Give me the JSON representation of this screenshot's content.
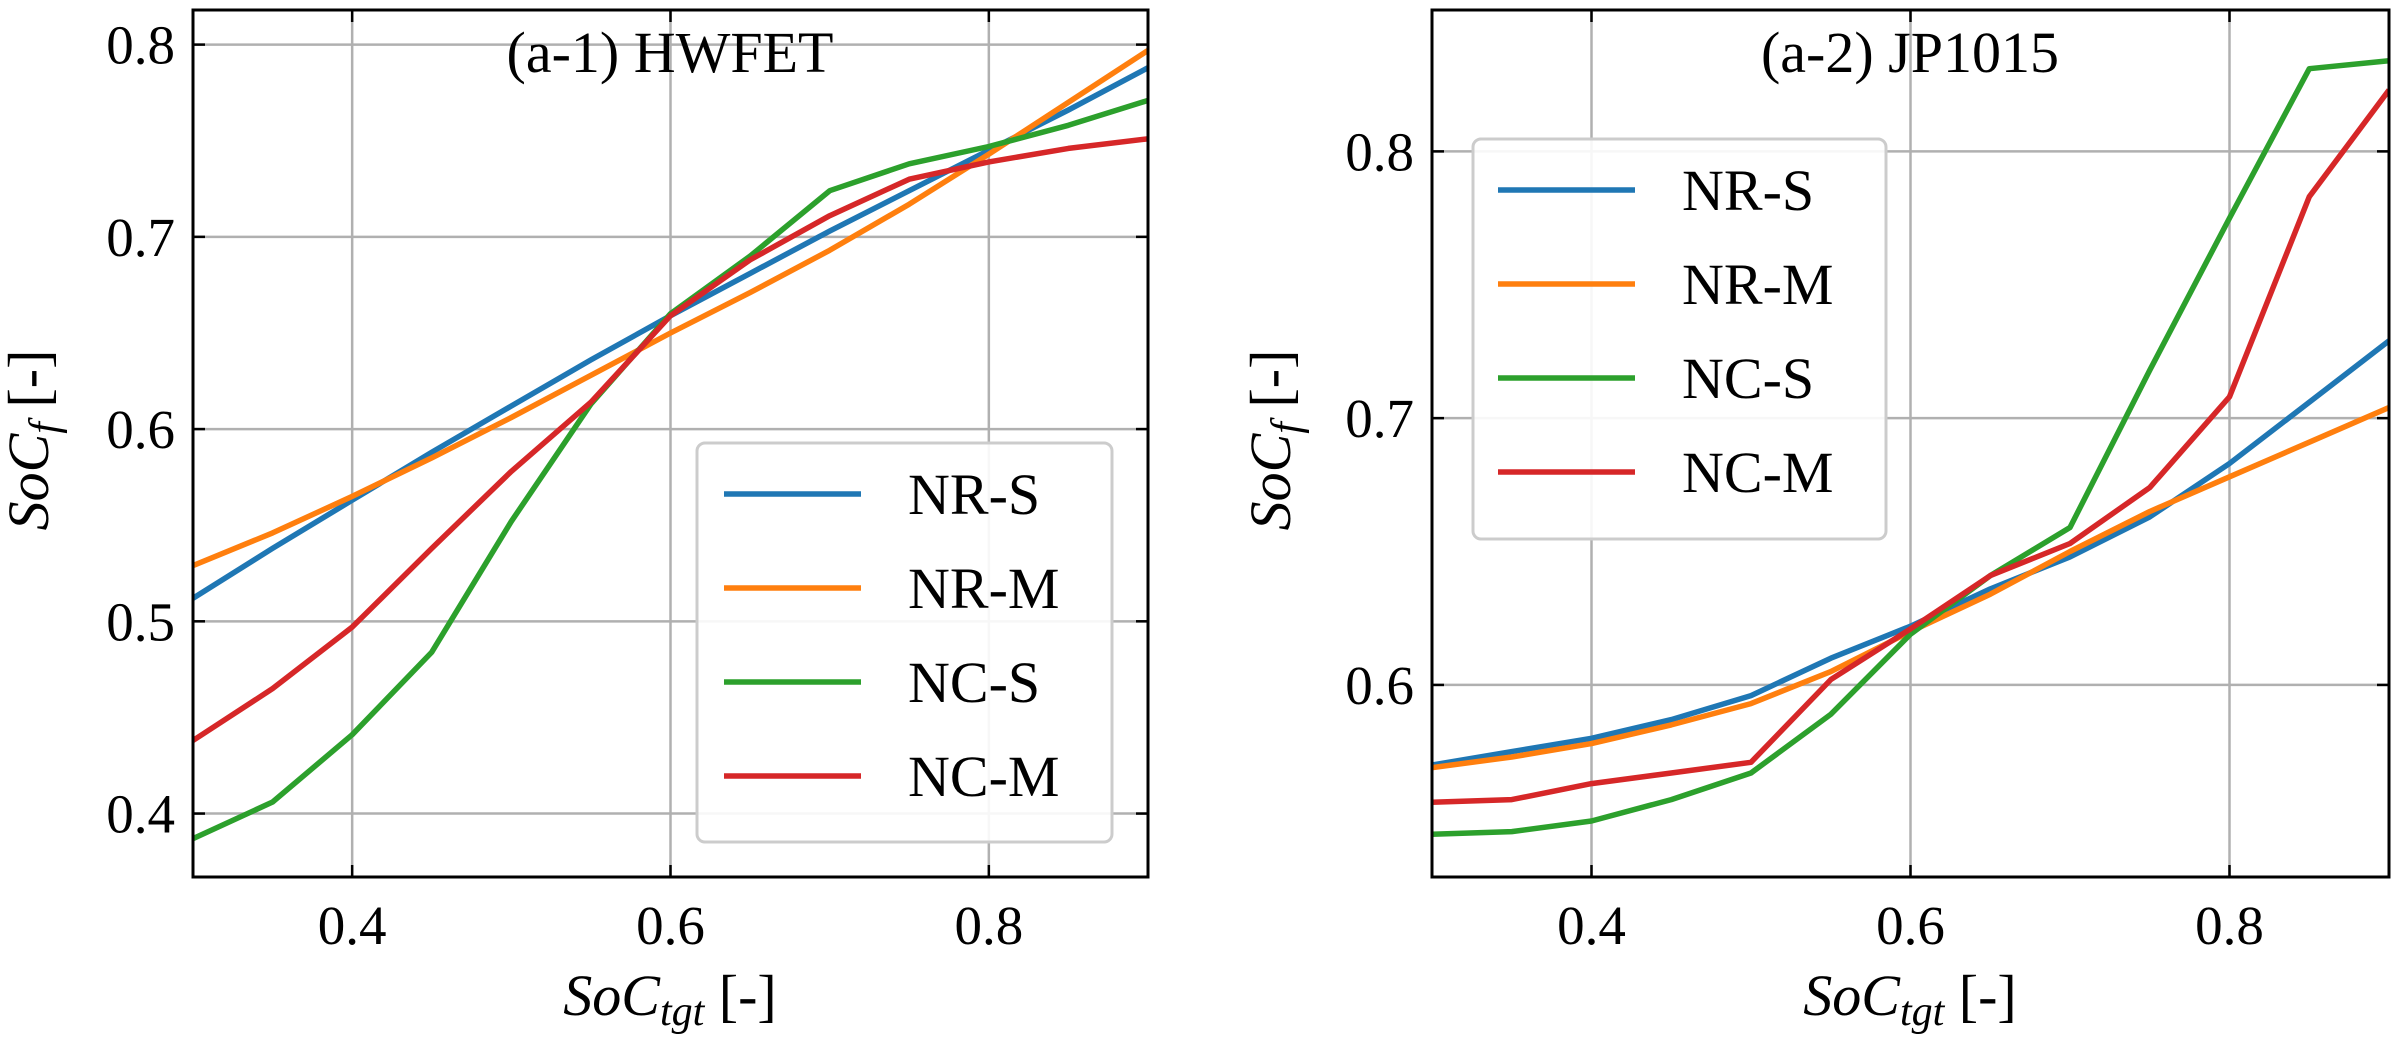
{
  "chart_data": [
    {
      "type": "line",
      "title": "(a-1) HWFET",
      "xlabel": {
        "main": "SoC",
        "sub": "tgt",
        "suffix": " [-]"
      },
      "ylabel": {
        "main": "SoC",
        "sub": "f",
        "suffix": " [-]"
      },
      "xlim": [
        0.3,
        0.9
      ],
      "ylim": [
        0.367,
        0.818
      ],
      "xticks": [
        "0.4",
        "0.6",
        "0.8"
      ],
      "xtick_values": [
        0.4,
        0.6,
        0.8
      ],
      "yticks": [
        "0.4",
        "0.5",
        "0.6",
        "0.7",
        "0.8"
      ],
      "ytick_values": [
        0.4,
        0.5,
        0.6,
        0.7,
        0.8
      ],
      "grid": true,
      "legend_position": "bottom-right",
      "series": [
        {
          "name": "NR-S",
          "color": "#1f77b4",
          "x": [
            0.3,
            0.35,
            0.4,
            0.45,
            0.5,
            0.55,
            0.6,
            0.65,
            0.7,
            0.75,
            0.8,
            0.85,
            0.9
          ],
          "y": [
            0.512,
            0.538,
            0.563,
            0.588,
            0.612,
            0.636,
            0.659,
            0.681,
            0.703,
            0.724,
            0.745,
            0.766,
            0.788
          ]
        },
        {
          "name": "NR-M",
          "color": "#ff7f0e",
          "x": [
            0.3,
            0.35,
            0.4,
            0.45,
            0.5,
            0.55,
            0.6,
            0.65,
            0.7,
            0.75,
            0.8,
            0.85,
            0.9
          ],
          "y": [
            0.529,
            0.546,
            0.565,
            0.585,
            0.606,
            0.628,
            0.65,
            0.671,
            0.693,
            0.717,
            0.743,
            0.77,
            0.797
          ]
        },
        {
          "name": "NC-S",
          "color": "#2ca02c",
          "x": [
            0.3,
            0.35,
            0.4,
            0.45,
            0.5,
            0.55,
            0.6,
            0.65,
            0.7,
            0.75,
            0.8,
            0.85,
            0.9
          ],
          "y": [
            0.387,
            0.406,
            0.441,
            0.484,
            0.552,
            0.613,
            0.66,
            0.69,
            0.724,
            0.738,
            0.747,
            0.758,
            0.771
          ]
        },
        {
          "name": "NC-M",
          "color": "#d62728",
          "x": [
            0.3,
            0.35,
            0.4,
            0.45,
            0.5,
            0.55,
            0.6,
            0.65,
            0.7,
            0.75,
            0.8,
            0.85,
            0.9
          ],
          "y": [
            0.438,
            0.465,
            0.497,
            0.538,
            0.578,
            0.614,
            0.659,
            0.688,
            0.711,
            0.73,
            0.739,
            0.746,
            0.751
          ]
        }
      ]
    },
    {
      "type": "line",
      "title": "(a-2) JP1015",
      "xlabel": {
        "main": "SoC",
        "sub": "tgt",
        "suffix": " [-]"
      },
      "ylabel": {
        "main": "SoC",
        "sub": "f",
        "suffix": " [-]"
      },
      "xlim": [
        0.3,
        0.9
      ],
      "ylim": [
        0.528,
        0.853
      ],
      "xticks": [
        "0.4",
        "0.6",
        "0.8"
      ],
      "xtick_values": [
        0.4,
        0.6,
        0.8
      ],
      "yticks": [
        "0.6",
        "0.7",
        "0.8"
      ],
      "ytick_values": [
        0.6,
        0.7,
        0.8
      ],
      "grid": true,
      "legend_position": "upper-left",
      "series": [
        {
          "name": "NR-S",
          "color": "#1f77b4",
          "x": [
            0.3,
            0.35,
            0.4,
            0.45,
            0.5,
            0.55,
            0.6,
            0.65,
            0.7,
            0.75,
            0.8,
            0.85,
            0.9
          ],
          "y": [
            0.57,
            0.575,
            0.58,
            0.587,
            0.596,
            0.61,
            0.622,
            0.636,
            0.648,
            0.663,
            0.683,
            0.706,
            0.729
          ]
        },
        {
          "name": "NR-M",
          "color": "#ff7f0e",
          "x": [
            0.3,
            0.35,
            0.4,
            0.45,
            0.5,
            0.55,
            0.6,
            0.65,
            0.7,
            0.75,
            0.8,
            0.85,
            0.9
          ],
          "y": [
            0.569,
            0.573,
            0.578,
            0.585,
            0.593,
            0.605,
            0.62,
            0.634,
            0.65,
            0.665,
            0.678,
            0.691,
            0.704
          ]
        },
        {
          "name": "NC-S",
          "color": "#2ca02c",
          "x": [
            0.3,
            0.35,
            0.4,
            0.45,
            0.5,
            0.55,
            0.6,
            0.65,
            0.7,
            0.75,
            0.8,
            0.85,
            0.9
          ],
          "y": [
            0.544,
            0.545,
            0.549,
            0.557,
            0.567,
            0.589,
            0.619,
            0.641,
            0.659,
            0.718,
            0.775,
            0.831,
            0.834
          ]
        },
        {
          "name": "NC-M",
          "color": "#d62728",
          "x": [
            0.3,
            0.35,
            0.4,
            0.45,
            0.5,
            0.55,
            0.6,
            0.65,
            0.7,
            0.75,
            0.8,
            0.85,
            0.9
          ],
          "y": [
            0.556,
            0.557,
            0.563,
            0.567,
            0.571,
            0.602,
            0.621,
            0.641,
            0.653,
            0.674,
            0.708,
            0.783,
            0.823
          ]
        }
      ]
    }
  ]
}
